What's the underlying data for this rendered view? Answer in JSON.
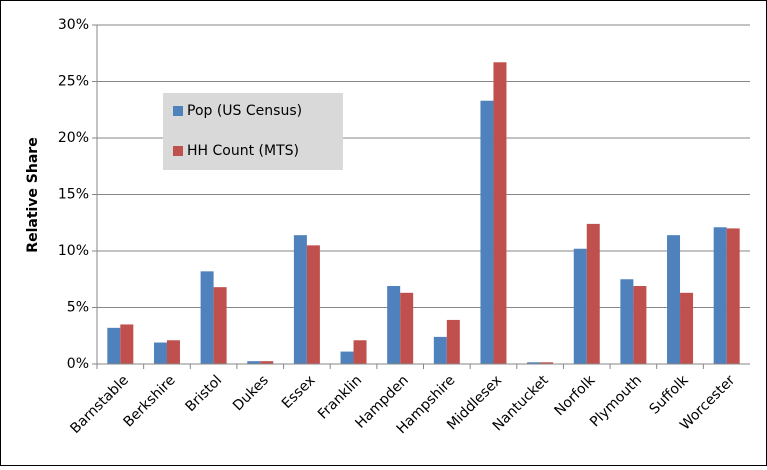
{
  "chart_data": {
    "type": "bar",
    "y_label": "Relative Share",
    "categories": [
      "Barnstable",
      "Berkshire",
      "Bristol",
      "Dukes",
      "Essex",
      "Franklin",
      "Hampden",
      "Hampshire",
      "Middlesex",
      "Nantucket",
      "Norfolk",
      "Plymouth",
      "Suffolk",
      "Worcester"
    ],
    "series": [
      {
        "name": "Pop (US Census)",
        "color": "#4f81bd",
        "values": [
          3.2,
          1.9,
          8.2,
          0.25,
          11.4,
          1.1,
          6.9,
          2.4,
          23.3,
          0.15,
          10.2,
          7.5,
          11.4,
          12.1
        ]
      },
      {
        "name": "HH Count (MTS)",
        "color": "#c0504d",
        "values": [
          3.5,
          2.1,
          6.8,
          0.25,
          10.5,
          2.1,
          6.3,
          3.9,
          26.7,
          0.15,
          12.4,
          6.9,
          6.3,
          12.0
        ]
      }
    ],
    "ylim": [
      0,
      30
    ],
    "yticks": [
      {
        "value": 0,
        "label": "0%"
      },
      {
        "value": 5,
        "label": "5%"
      },
      {
        "value": 10,
        "label": "10%"
      },
      {
        "value": 15,
        "label": "15%"
      },
      {
        "value": 20,
        "label": "20%"
      },
      {
        "value": 25,
        "label": "25%"
      },
      {
        "value": 30,
        "label": "30%"
      }
    ],
    "grid": true,
    "legend": "upper left"
  }
}
